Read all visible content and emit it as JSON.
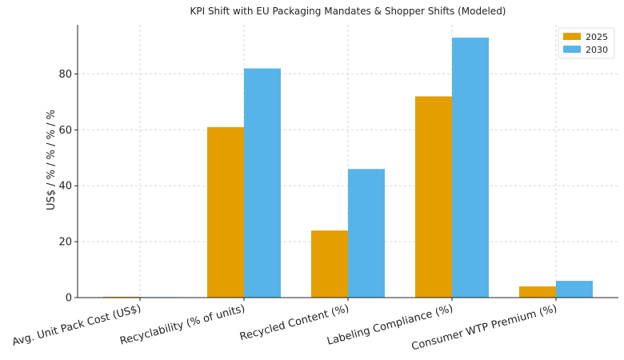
{
  "chart_data": {
    "type": "bar",
    "title": "KPI Shift with EU Packaging Mandates & Shopper Shifts (Modeled)",
    "xlabel": "",
    "ylabel": "US$ / % / % / % / %",
    "categories": [
      "Avg. Unit Pack Cost (US$)",
      "Recyclability (% of units)",
      "Recycled Content (%)",
      "Labeling Compliance (%)",
      "Consumer WTP Premium (%)"
    ],
    "series": [
      {
        "name": "2025",
        "color": "#E49E00",
        "values": [
          0.3,
          61,
          24,
          72,
          4
        ]
      },
      {
        "name": "2030",
        "color": "#56B4E9",
        "values": [
          0.2,
          82,
          46,
          93,
          6
        ]
      }
    ],
    "ylim": [
      0,
      97.6
    ],
    "yticks": [
      0,
      20,
      40,
      60,
      80
    ],
    "grid": true,
    "legend_position": "top-right"
  }
}
